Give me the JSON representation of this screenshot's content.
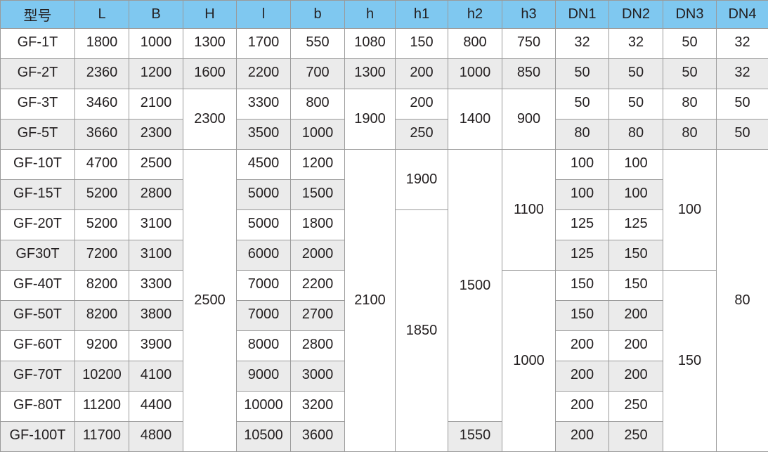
{
  "table": {
    "headers": [
      "型号",
      "L",
      "B",
      "H",
      "l",
      "b",
      "h",
      "h1",
      "h2",
      "h3",
      "DN1",
      "DN2",
      "DN3",
      "DN4"
    ],
    "rows": [
      [
        {
          "t": "GF-1T"
        },
        {
          "t": "1800"
        },
        {
          "t": "1000"
        },
        {
          "t": "1300"
        },
        {
          "t": "1700"
        },
        {
          "t": "550"
        },
        {
          "t": "1080"
        },
        {
          "t": "150"
        },
        {
          "t": "800"
        },
        {
          "t": "750"
        },
        {
          "t": "32"
        },
        {
          "t": "32"
        },
        {
          "t": "50"
        },
        {
          "t": "32"
        }
      ],
      [
        {
          "t": "GF-2T"
        },
        {
          "t": "2360"
        },
        {
          "t": "1200"
        },
        {
          "t": "1600"
        },
        {
          "t": "2200"
        },
        {
          "t": "700"
        },
        {
          "t": "1300"
        },
        {
          "t": "200"
        },
        {
          "t": "1000"
        },
        {
          "t": "850"
        },
        {
          "t": "50"
        },
        {
          "t": "50"
        },
        {
          "t": "50"
        },
        {
          "t": "32"
        }
      ],
      [
        {
          "t": "GF-3T"
        },
        {
          "t": "3460"
        },
        {
          "t": "2100"
        },
        {
          "t": "2300",
          "rs": 2
        },
        {
          "t": "3300"
        },
        {
          "t": "800"
        },
        {
          "t": "1900",
          "rs": 2
        },
        {
          "t": "200"
        },
        {
          "t": "1400",
          "rs": 2
        },
        {
          "t": "900",
          "rs": 2
        },
        {
          "t": "50"
        },
        {
          "t": "50"
        },
        {
          "t": "80"
        },
        {
          "t": "50"
        }
      ],
      [
        {
          "t": "GF-5T"
        },
        {
          "t": "3660"
        },
        {
          "t": "2300"
        },
        {
          "t": "3500"
        },
        {
          "t": "1000"
        },
        {
          "t": "250"
        },
        {
          "t": "80"
        },
        {
          "t": "80"
        },
        {
          "t": "80"
        },
        {
          "t": "50"
        }
      ],
      [
        {
          "t": "GF-10T"
        },
        {
          "t": "4700"
        },
        {
          "t": "2500"
        },
        {
          "t": "2500",
          "rs": 10
        },
        {
          "t": "4500"
        },
        {
          "t": "1200"
        },
        {
          "t": "2100",
          "rs": 10
        },
        {
          "t": "1900",
          "rs": 2
        },
        {
          "t": "1500",
          "rs": 9
        },
        {
          "t": "1100",
          "rs": 4
        },
        {
          "t": "100"
        },
        {
          "t": "100"
        },
        {
          "t": "100",
          "rs": 4
        },
        {
          "t": "80",
          "rs": 10
        }
      ],
      [
        {
          "t": "GF-15T"
        },
        {
          "t": "5200"
        },
        {
          "t": "2800"
        },
        {
          "t": "5000"
        },
        {
          "t": "1500"
        },
        {
          "t": "100"
        },
        {
          "t": "100"
        }
      ],
      [
        {
          "t": "GF-20T"
        },
        {
          "t": "5200"
        },
        {
          "t": "3100"
        },
        {
          "t": "5000"
        },
        {
          "t": "1800"
        },
        {
          "t": "1850",
          "rs": 8
        },
        {
          "t": "125"
        },
        {
          "t": "125"
        }
      ],
      [
        {
          "t": "GF30T"
        },
        {
          "t": "7200"
        },
        {
          "t": "3100"
        },
        {
          "t": "6000"
        },
        {
          "t": "2000"
        },
        {
          "t": "125"
        },
        {
          "t": "150"
        }
      ],
      [
        {
          "t": "GF-40T"
        },
        {
          "t": "8200"
        },
        {
          "t": "3300"
        },
        {
          "t": "7000"
        },
        {
          "t": "2200"
        },
        {
          "t": "1000",
          "rs": 6
        },
        {
          "t": "150"
        },
        {
          "t": "150"
        },
        {
          "t": "150",
          "rs": 6
        }
      ],
      [
        {
          "t": "GF-50T"
        },
        {
          "t": "8200"
        },
        {
          "t": "3800"
        },
        {
          "t": "7000"
        },
        {
          "t": "2700"
        },
        {
          "t": "150"
        },
        {
          "t": "200"
        }
      ],
      [
        {
          "t": "GF-60T"
        },
        {
          "t": "9200"
        },
        {
          "t": "3900"
        },
        {
          "t": "8000"
        },
        {
          "t": "2800"
        },
        {
          "t": "200"
        },
        {
          "t": "200"
        }
      ],
      [
        {
          "t": "GF-70T"
        },
        {
          "t": "10200"
        },
        {
          "t": "4100"
        },
        {
          "t": "9000"
        },
        {
          "t": "3000"
        },
        {
          "t": "200"
        },
        {
          "t": "200"
        }
      ],
      [
        {
          "t": "GF-80T"
        },
        {
          "t": "11200"
        },
        {
          "t": "4400"
        },
        {
          "t": "10000"
        },
        {
          "t": "3200"
        },
        {
          "t": "200"
        },
        {
          "t": "250"
        }
      ],
      [
        {
          "t": "GF-100T"
        },
        {
          "t": "11700"
        },
        {
          "t": "4800"
        },
        {
          "t": "10500"
        },
        {
          "t": "3600"
        },
        {
          "t": "1550"
        },
        {
          "t": "200"
        },
        {
          "t": "250"
        }
      ]
    ]
  },
  "colors": {
    "header_bg": "#7fc8f0",
    "alt_row_bg": "#ebebeb",
    "border": "#9a9a9a",
    "text": "#231f20"
  }
}
